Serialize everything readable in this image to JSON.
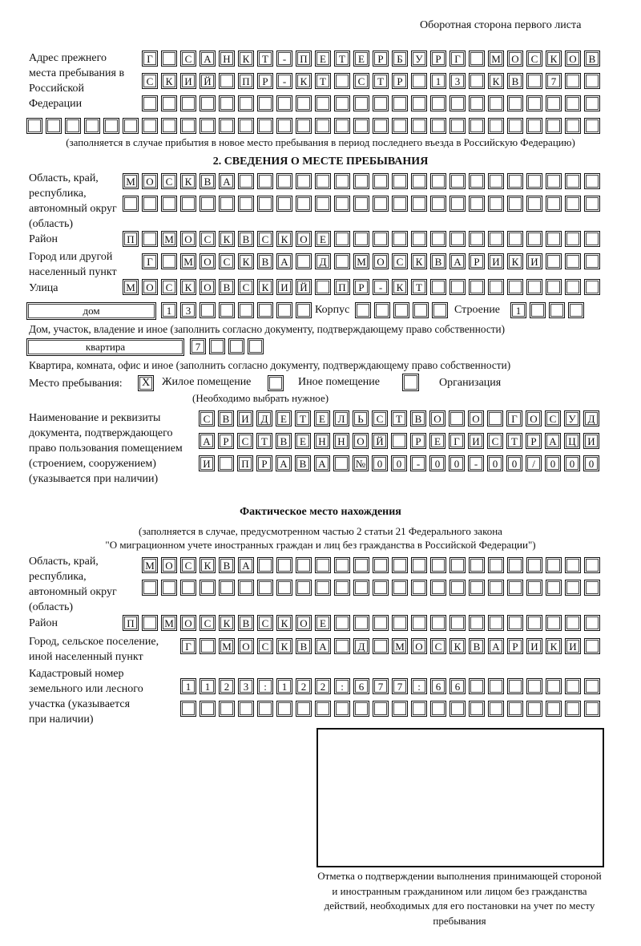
{
  "header": "Оборотная сторона первого листа",
  "prev_address": {
    "label": "Адрес прежнего места пребывания в Российской Федерации",
    "rows": [
      [
        "Г",
        "",
        "С",
        "А",
        "Н",
        "К",
        "Т",
        "-",
        "П",
        "Е",
        "Т",
        "Е",
        "Р",
        "Б",
        "У",
        "Р",
        "Г",
        "",
        "М",
        "О",
        "С",
        "К",
        "О",
        "В"
      ],
      [
        "С",
        "К",
        "И",
        "Й",
        "",
        "П",
        "Р",
        "-",
        "К",
        "Т",
        "",
        "С",
        "Т",
        "Р",
        "",
        "1",
        "3",
        "",
        "К",
        "В",
        "",
        "7",
        "",
        ""
      ],
      [
        "",
        "",
        "",
        "",
        "",
        "",
        "",
        "",
        "",
        "",
        "",
        "",
        "",
        "",
        "",
        "",
        "",
        "",
        "",
        "",
        "",
        "",
        "",
        ""
      ],
      [
        "",
        "",
        "",
        "",
        "",
        "",
        "",
        "",
        "",
        "",
        "",
        "",
        "",
        "",
        "",
        "",
        "",
        "",
        "",
        "",
        "",
        "",
        "",
        "",
        "",
        "",
        "",
        "",
        "",
        ""
      ]
    ],
    "note": "(заполняется в случае прибытия в новое место пребывания в период последнего въезда в Российскую Федерацию)"
  },
  "section2": {
    "title": "2. СВЕДЕНИЯ О МЕСТЕ ПРЕБЫВАНИЯ",
    "region_label": "Область, край, республика, автономный округ (область)",
    "region_rows": [
      [
        "М",
        "О",
        "С",
        "К",
        "В",
        "А",
        "",
        "",
        "",
        "",
        "",
        "",
        "",
        "",
        "",
        "",
        "",
        "",
        "",
        "",
        "",
        "",
        "",
        "",
        ""
      ],
      [
        "",
        "",
        "",
        "",
        "",
        "",
        "",
        "",
        "",
        "",
        "",
        "",
        "",
        "",
        "",
        "",
        "",
        "",
        "",
        "",
        "",
        "",
        "",
        "",
        ""
      ]
    ],
    "district_label": "Район",
    "district": [
      "П",
      "",
      "М",
      "О",
      "С",
      "К",
      "В",
      "С",
      "К",
      "О",
      "Е",
      "",
      "",
      "",
      "",
      "",
      "",
      "",
      "",
      "",
      "",
      "",
      "",
      "",
      ""
    ],
    "city_label": "Город или другой населенный пункт",
    "city": [
      "Г",
      "",
      "М",
      "О",
      "С",
      "К",
      "В",
      "А",
      "",
      "Д",
      "",
      "М",
      "О",
      "С",
      "К",
      "В",
      "А",
      "Р",
      "И",
      "К",
      "И",
      "",
      "",
      ""
    ],
    "street_label": "Улица",
    "street": [
      "М",
      "О",
      "С",
      "К",
      "О",
      "В",
      "С",
      "К",
      "И",
      "Й",
      "",
      "П",
      "Р",
      "-",
      "К",
      "Т",
      "",
      "",
      "",
      "",
      "",
      "",
      "",
      "",
      ""
    ],
    "house_type": "дом",
    "house": [
      "1",
      "3",
      "",
      "",
      "",
      "",
      "",
      ""
    ],
    "building_label": "Корпус",
    "building": [
      "",
      "",
      "",
      "",
      ""
    ],
    "structure_label": "Строение",
    "structure": [
      "1",
      "",
      "",
      ""
    ],
    "house_note": "Дом, участок, владение и иное (заполнить согласно документу, подтверждающему право собственности)",
    "apt_type": "квартира",
    "apt": [
      "7",
      "",
      "",
      ""
    ],
    "apt_note": "Квартира, комната, офис и иное (заполнить согласно документу, подтверждающему право собственности)",
    "place_label": "Место пребывания:",
    "place_options": [
      {
        "label": "Жилое помещение",
        "mark": "X"
      },
      {
        "label": "Иное помещение",
        "mark": ""
      },
      {
        "label": "Организация",
        "mark": ""
      }
    ],
    "place_note": "(Необходимо выбрать нужное)",
    "doc_label": "Наименование и реквизиты документа, подтверждающего право пользования помещением (строением, сооружением) (указывается при наличии)",
    "doc_rows": [
      [
        "С",
        "В",
        "И",
        "Д",
        "Е",
        "Т",
        "Е",
        "Л",
        "Ь",
        "С",
        "Т",
        "В",
        "О",
        "",
        "О",
        "",
        "Г",
        "О",
        "С",
        "У",
        "Д"
      ],
      [
        "А",
        "Р",
        "С",
        "Т",
        "В",
        "Е",
        "Н",
        "Н",
        "О",
        "Й",
        "",
        "Р",
        "Е",
        "Г",
        "И",
        "С",
        "Т",
        "Р",
        "А",
        "Ц",
        "И"
      ],
      [
        "И",
        "",
        "П",
        "Р",
        "А",
        "В",
        "А",
        "",
        "№",
        "0",
        "0",
        "-",
        "0",
        "0",
        "-",
        "0",
        "0",
        "/",
        "0",
        "0",
        "0"
      ]
    ]
  },
  "actual": {
    "title": "Фактическое место нахождения",
    "note1": "(заполняется в случае, предусмотренном частью 2 статьи 21 Федерального закона",
    "note2": "\"О миграционном учете иностранных граждан и лиц без гражданства в Российской Федерации\")",
    "region_label": "Область, край, республика, автономный округ (область)",
    "region_rows": [
      [
        "М",
        "О",
        "С",
        "К",
        "В",
        "А",
        "",
        "",
        "",
        "",
        "",
        "",
        "",
        "",
        "",
        "",
        "",
        "",
        "",
        "",
        "",
        "",
        "",
        ""
      ],
      [
        "",
        "",
        "",
        "",
        "",
        "",
        "",
        "",
        "",
        "",
        "",
        "",
        "",
        "",
        "",
        "",
        "",
        "",
        "",
        "",
        "",
        "",
        "",
        ""
      ]
    ],
    "district_label": "Район",
    "district": [
      "П",
      "",
      "М",
      "О",
      "С",
      "К",
      "В",
      "С",
      "К",
      "О",
      "Е",
      "",
      "",
      "",
      "",
      "",
      "",
      "",
      "",
      "",
      "",
      "",
      "",
      "",
      ""
    ],
    "city_label": "Город, сельское поселение, иной населенный пункт",
    "city": [
      "Г",
      "",
      "М",
      "О",
      "С",
      "К",
      "В",
      "А",
      "",
      "Д",
      "",
      "М",
      "О",
      "С",
      "К",
      "В",
      "А",
      "Р",
      "И",
      "К",
      "И",
      ""
    ],
    "cadastral_label": "Кадастровый номер земельного или лесного участка (указывается при наличии)",
    "cadastral_rows": [
      [
        "1",
        "1",
        "2",
        "3",
        ":",
        "1",
        "2",
        "2",
        ":",
        "6",
        "7",
        "7",
        ":",
        "6",
        "6",
        "",
        "",
        "",
        "",
        "",
        "",
        ""
      ],
      [
        "",
        "",
        "",
        "",
        "",
        "",
        "",
        "",
        "",
        "",
        "",
        "",
        "",
        "",
        "",
        "",
        "",
        "",
        "",
        "",
        "",
        ""
      ]
    ]
  },
  "stamp_caption": "Отметка о подтверждении выполнения принимающей стороной и иностранным гражданином или лицом без гражданства действий, необходимых для его постановки на учет по месту пребывания"
}
